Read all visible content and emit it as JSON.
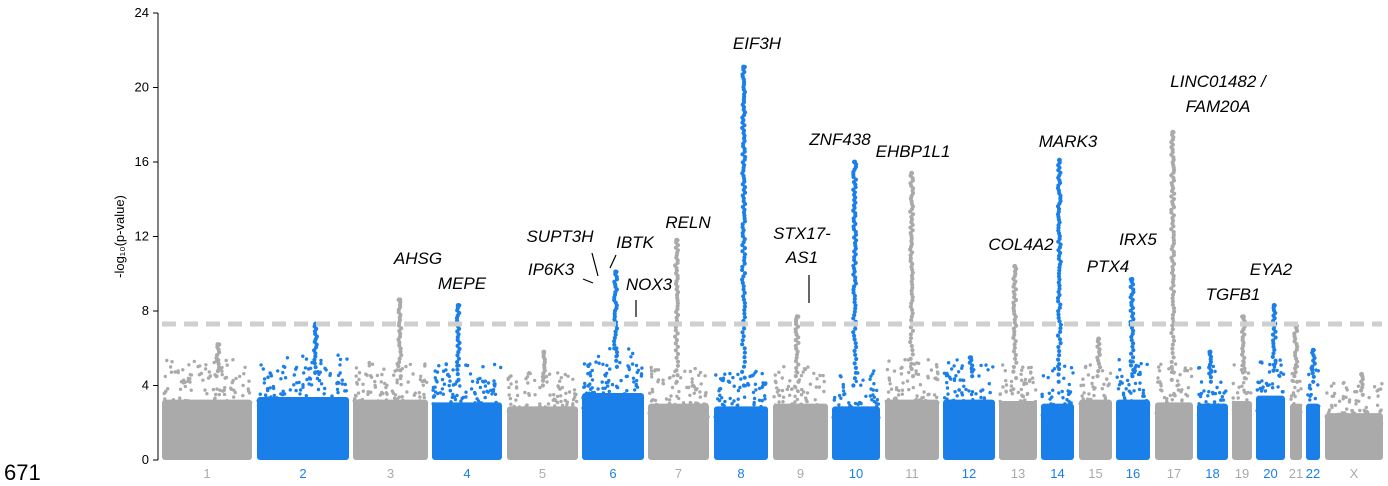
{
  "figure_number": "671",
  "colors": {
    "grey": "#aaaaaa",
    "blue": "#1a7fe8",
    "threshold": "#cfcfcf"
  },
  "chart_data": {
    "type": "scatter",
    "title": "",
    "xlabel": "",
    "ylabel": "-log₁₀(p-value)",
    "ylim": [
      0,
      24
    ],
    "yticks": [
      0,
      4,
      8,
      12,
      16,
      20,
      24
    ],
    "threshold": 7.3,
    "grid": false,
    "chromosomes": [
      {
        "label": "1",
        "color": "grey",
        "base": 4.5,
        "peak": 6.2
      },
      {
        "label": "2",
        "color": "blue",
        "base": 4.7,
        "peak": 7.3
      },
      {
        "label": "3",
        "color": "grey",
        "base": 4.5,
        "peak": 8.6
      },
      {
        "label": "4",
        "color": "blue",
        "base": 4.3,
        "peak": 8.3
      },
      {
        "label": "5",
        "color": "grey",
        "base": 4.0,
        "peak": 5.8
      },
      {
        "label": "6",
        "color": "blue",
        "base": 5.0,
        "peak": 10.1
      },
      {
        "label": "7",
        "color": "grey",
        "base": 4.2,
        "peak": 11.8
      },
      {
        "label": "8",
        "color": "blue",
        "base": 4.0,
        "peak": 21.1
      },
      {
        "label": "9",
        "color": "grey",
        "base": 4.2,
        "peak": 7.7
      },
      {
        "label": "10",
        "color": "blue",
        "base": 4.0,
        "peak": 16.0
      },
      {
        "label": "11",
        "color": "grey",
        "base": 4.5,
        "peak": 15.4
      },
      {
        "label": "12",
        "color": "blue",
        "base": 4.5,
        "peak": 5.5
      },
      {
        "label": "13",
        "color": "grey",
        "base": 4.4,
        "peak": 10.4
      },
      {
        "label": "14",
        "color": "blue",
        "base": 4.2,
        "peak": 16.1
      },
      {
        "label": "15",
        "color": "grey",
        "base": 4.5,
        "peak": 6.5
      },
      {
        "label": "16",
        "color": "blue",
        "base": 4.5,
        "peak": 9.7
      },
      {
        "label": "17",
        "color": "grey",
        "base": 4.3,
        "peak": 17.6
      },
      {
        "label": "18",
        "color": "blue",
        "base": 4.2,
        "peak": 5.8
      },
      {
        "label": "19",
        "color": "grey",
        "base": 4.4,
        "peak": 7.7
      },
      {
        "label": "20",
        "color": "blue",
        "base": 4.8,
        "peak": 8.3
      },
      {
        "label": "21",
        "color": "grey",
        "base": 4.2,
        "peak": 7.2
      },
      {
        "label": "22",
        "color": "blue",
        "base": 4.2,
        "peak": 5.9
      },
      {
        "label": "X",
        "color": "grey",
        "base": 3.5,
        "peak": 4.6
      }
    ],
    "annotations": [
      {
        "text": "AHSG",
        "chromosome": "3",
        "y": 8.6
      },
      {
        "text": "MEPE",
        "chromosome": "4",
        "y": 8.3
      },
      {
        "text": "SUPT3H",
        "chromosome": "6",
        "y": 9.7
      },
      {
        "text": "IP6K3",
        "chromosome": "6",
        "y": 9.5
      },
      {
        "text": "IBTK",
        "chromosome": "6",
        "y": 10.1
      },
      {
        "text": "NOX3",
        "chromosome": "6",
        "y": 7.4
      },
      {
        "text": "RELN",
        "chromosome": "7",
        "y": 11.8
      },
      {
        "text": "EIF3H",
        "chromosome": "8",
        "y": 21.1
      },
      {
        "text": "STX17-",
        "chromosome": "9",
        "y": 7.7
      },
      {
        "text": "AS1",
        "chromosome": "9",
        "y": 7.7
      },
      {
        "text": "ZNF438",
        "chromosome": "10",
        "y": 16.0
      },
      {
        "text": "EHBP1L1",
        "chromosome": "11",
        "y": 15.4
      },
      {
        "text": "COL4A2",
        "chromosome": "13",
        "y": 10.4
      },
      {
        "text": "MARK3",
        "chromosome": "14",
        "y": 16.1
      },
      {
        "text": "PTX4",
        "chromosome": "16",
        "y": 9.0
      },
      {
        "text": "IRX5",
        "chromosome": "16",
        "y": 9.7
      },
      {
        "text": "LINC01482 /",
        "chromosome": "17",
        "y": 17.6
      },
      {
        "text": "FAM20A",
        "chromosome": "17",
        "y": 17.6
      },
      {
        "text": "TGFB1",
        "chromosome": "19",
        "y": 7.7
      },
      {
        "text": "EYA2",
        "chromosome": "20",
        "y": 8.3
      }
    ]
  }
}
